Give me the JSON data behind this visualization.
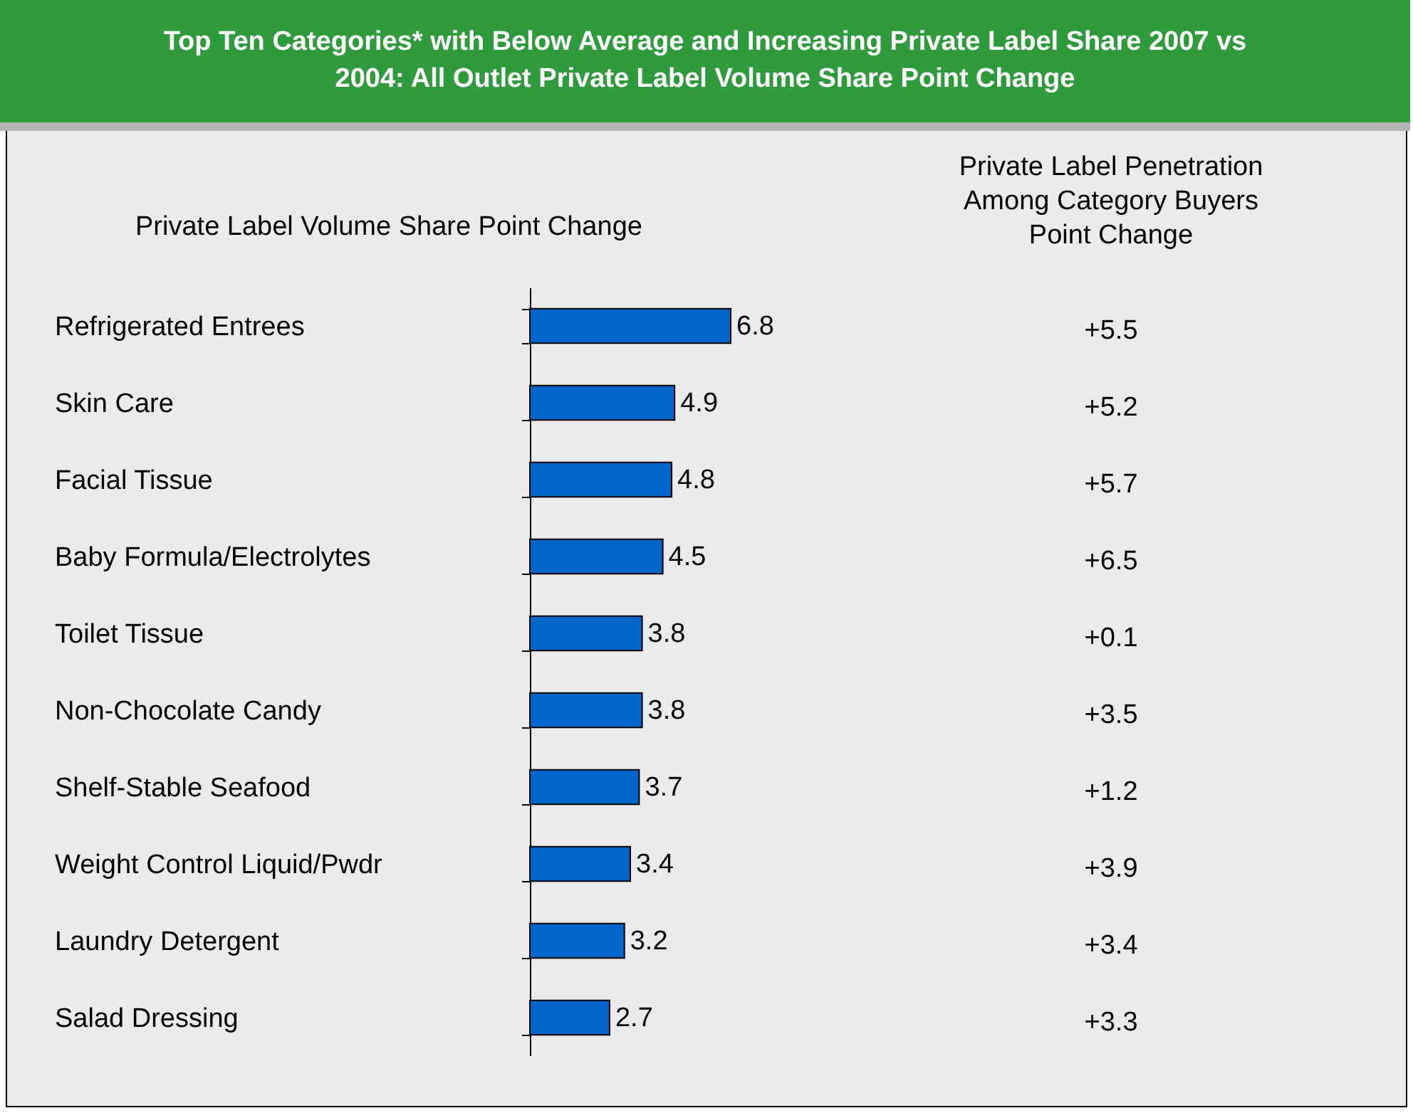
{
  "chart_data": [
    {
      "type": "bar",
      "orientation": "horizontal",
      "title": "Top Ten Categories* with Below Average and Increasing Private Label Share 2007 vs 2004: All Outlet Private Label Volume Share Point Change",
      "subtitle": "Private Label Volume Share Point Change",
      "categories": [
        "Refrigerated Entrees",
        "Skin Care",
        "Facial Tissue",
        "Baby Formula/Electrolytes",
        "Toilet Tissue",
        "Non-Chocolate Candy",
        "Shelf-Stable Seafood",
        "Weight Control Liquid/Pwdr",
        "Laundry Detergent",
        "Salad Dressing"
      ],
      "values": [
        6.8,
        4.9,
        4.8,
        4.5,
        3.8,
        3.8,
        3.7,
        3.4,
        3.2,
        2.7
      ],
      "color": "#0066cc",
      "data_labels": true,
      "tick_labels": "y",
      "grid": false
    },
    {
      "type": "other",
      "title": "Private Label Penetration\nAmong Category Buyers\nPoint Change",
      "categories": [
        null,
        null,
        null,
        null,
        null,
        null,
        null,
        null,
        null,
        null
      ],
      "values": [
        5.5,
        5.2,
        5.7,
        6.5,
        0.1,
        3.5,
        1.2,
        3.9,
        3.4,
        3.3
      ],
      "value_labels": [
        "+5.5",
        "+5.2",
        "+5.7",
        "+6.5",
        "+0.1",
        "+3.5",
        "+1.2",
        "+3.9",
        "+3.4",
        "+3.3"
      ]
    }
  ]
}
